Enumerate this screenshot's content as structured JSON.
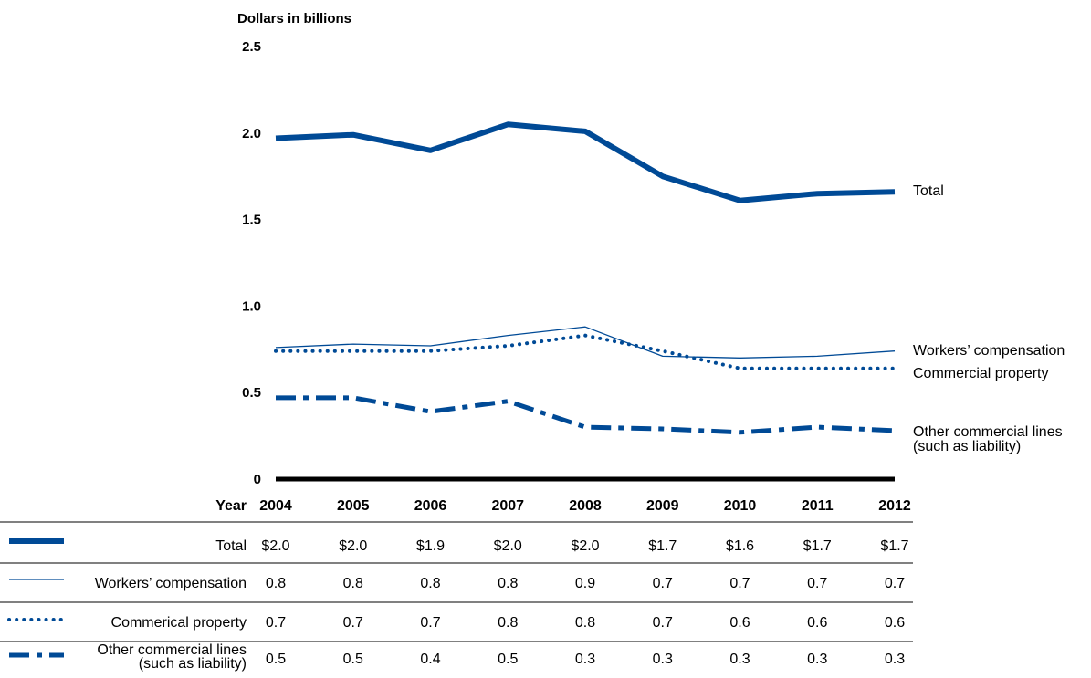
{
  "chart_data": {
    "type": "line",
    "ylabel": "Dollars in billions",
    "ylim": [
      0,
      2.5
    ],
    "yticks": [
      "0",
      "0.5",
      "1.0",
      "1.5",
      "2.0",
      "2.5"
    ],
    "ytick_values": [
      0,
      0.5,
      1.0,
      1.5,
      2.0,
      2.5
    ],
    "x_header": "Year",
    "x": [
      "2004",
      "2005",
      "2006",
      "2007",
      "2008",
      "2009",
      "2010",
      "2011",
      "2012"
    ],
    "series": [
      {
        "key": "total",
        "name": "Total",
        "style": "thick-solid",
        "values": [
          1.97,
          1.99,
          1.9,
          2.05,
          2.01,
          1.75,
          1.61,
          1.65,
          1.66
        ]
      },
      {
        "key": "workers",
        "name": "Workers’ compensation",
        "style": "thin-solid",
        "values": [
          0.76,
          0.78,
          0.77,
          0.83,
          0.88,
          0.71,
          0.7,
          0.71,
          0.74
        ]
      },
      {
        "key": "property",
        "name": "Commercial property",
        "style": "dotted",
        "values": [
          0.74,
          0.74,
          0.74,
          0.77,
          0.83,
          0.74,
          0.64,
          0.64,
          0.64
        ]
      },
      {
        "key": "other",
        "name": "Other commercial lines (such as liability)",
        "name_lines": [
          "Other commercial lines",
          "(such as liability)"
        ],
        "style": "dash-dot",
        "values": [
          0.47,
          0.47,
          0.39,
          0.45,
          0.3,
          0.29,
          0.27,
          0.3,
          0.28
        ]
      }
    ],
    "table": {
      "rows": [
        {
          "key": "total",
          "label_lines": [
            "Total"
          ],
          "values": [
            "$2.0",
            "$2.0",
            "$1.9",
            "$2.0",
            "$2.0",
            "$1.7",
            "$1.6",
            "$1.7",
            "$1.7"
          ]
        },
        {
          "key": "workers",
          "label_lines": [
            "Workers’ compensation"
          ],
          "values": [
            "0.8",
            "0.8",
            "0.8",
            "0.8",
            "0.9",
            "0.7",
            "0.7",
            "0.7",
            "0.7"
          ]
        },
        {
          "key": "property",
          "label_lines": [
            "Commerical property"
          ],
          "values": [
            "0.7",
            "0.7",
            "0.7",
            "0.8",
            "0.8",
            "0.7",
            "0.6",
            "0.6",
            "0.6"
          ]
        },
        {
          "key": "other",
          "label_lines": [
            "Other commercial lines",
            "(such as liability)"
          ],
          "values": [
            "0.5",
            "0.5",
            "0.4",
            "0.5",
            "0.3",
            "0.3",
            "0.3",
            "0.3",
            "0.3"
          ]
        }
      ]
    },
    "colors": {
      "series": "#004a96",
      "axis": "#000000"
    }
  }
}
